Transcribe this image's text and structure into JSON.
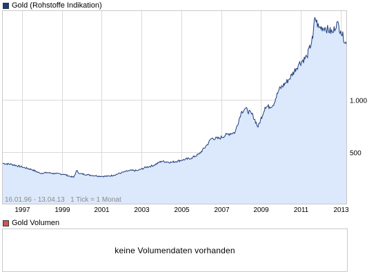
{
  "legend_price": {
    "label": "Gold (Rohstoffe Indikation)",
    "color": "#1f3d7a"
  },
  "legend_volume": {
    "label": "Gold Volumen",
    "color": "#d9534f"
  },
  "range_note": "16.01.96 - 13.04.13   1 Tick = 1 Monat",
  "volume_message": "keine Volumendaten vorhanden",
  "colors": {
    "line": "#1f3d7a",
    "fill": "#dce8fb",
    "grid": "#d9d9d9"
  },
  "chart_data": {
    "type": "area",
    "title": "Gold (Rohstoffe Indikation)",
    "xlabel": "",
    "ylabel": "",
    "xlim": [
      1996.04,
      2013.28
    ],
    "ylim": [
      0,
      1860
    ],
    "yticks": [
      500,
      1000
    ],
    "ytick_labels": [
      "500",
      "1.000"
    ],
    "xticks": [
      1997,
      1999,
      2001,
      2003,
      2005,
      2007,
      2009,
      2011,
      2013
    ],
    "xtick_labels": [
      "1997",
      "1999",
      "2001",
      "2003",
      "2005",
      "2007",
      "2009",
      "2011",
      "2013"
    ],
    "grid": true,
    "series": [
      {
        "name": "Gold (Rohstoffe Indikation)",
        "x": [
          1996.04,
          1996.5,
          1997.0,
          1997.5,
          1997.9,
          1998.3,
          1998.7,
          1999.1,
          1999.4,
          1999.6,
          1999.75,
          1999.9,
          2000.3,
          2000.7,
          2001.0,
          2001.3,
          2001.6,
          2002.0,
          2002.4,
          2002.8,
          2003.2,
          2003.6,
          2004.0,
          2004.5,
          2005.0,
          2005.5,
          2005.9,
          2006.3,
          2006.5,
          2006.9,
          2007.3,
          2007.7,
          2008.0,
          2008.2,
          2008.6,
          2008.85,
          2009.2,
          2009.6,
          2009.9,
          2010.4,
          2010.9,
          2011.3,
          2011.6,
          2011.7,
          2011.9,
          2012.2,
          2012.6,
          2012.8,
          2013.0,
          2013.28
        ],
        "values": [
          390,
          380,
          355,
          330,
          295,
          300,
          290,
          285,
          265,
          255,
          320,
          290,
          280,
          270,
          265,
          265,
          275,
          300,
          320,
          320,
          350,
          370,
          410,
          400,
          420,
          440,
          480,
          570,
          630,
          630,
          670,
          690,
          880,
          920,
          850,
          740,
          930,
          950,
          1100,
          1200,
          1350,
          1420,
          1600,
          1800,
          1700,
          1700,
          1650,
          1750,
          1670,
          1540
        ]
      }
    ]
  }
}
